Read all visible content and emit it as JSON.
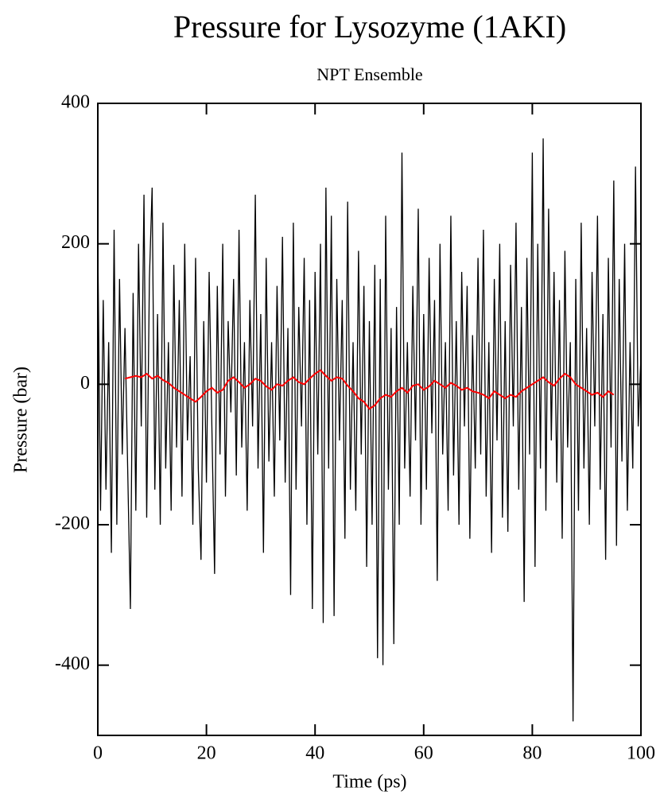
{
  "chart_data": {
    "type": "line",
    "title": "Pressure for Lysozyme (1AKI)",
    "subtitle": "NPT Ensemble",
    "x_label": "Time (ps)",
    "y_label": "Pressure (bar)",
    "xlim": [
      0,
      100
    ],
    "ylim": [
      -500,
      400
    ],
    "xticks": [
      0,
      20,
      40,
      60,
      80,
      100
    ],
    "yticks": [
      -400,
      -200,
      0,
      200,
      400
    ],
    "grid": false,
    "series": [
      {
        "color": "#000000",
        "x": [
          0,
          0.5,
          1,
          1.5,
          2,
          2.5,
          3,
          3.5,
          4,
          4.5,
          5,
          5.5,
          6,
          6.5,
          7,
          7.5,
          8,
          8.5,
          9,
          9.5,
          10,
          10.5,
          11,
          11.5,
          12,
          12.5,
          13,
          13.5,
          14,
          14.5,
          15,
          15.5,
          16,
          16.5,
          17,
          17.5,
          18,
          18.5,
          19,
          19.5,
          20,
          20.5,
          21,
          21.5,
          22,
          22.5,
          23,
          23.5,
          24,
          24.5,
          25,
          25.5,
          26,
          26.5,
          27,
          27.5,
          28,
          28.5,
          29,
          29.5,
          30,
          30.5,
          31,
          31.5,
          32,
          32.5,
          33,
          33.5,
          34,
          34.5,
          35,
          35.5,
          36,
          36.5,
          37,
          37.5,
          38,
          38.5,
          39,
          39.5,
          40,
          40.5,
          41,
          41.5,
          42,
          42.5,
          43,
          43.5,
          44,
          44.5,
          45,
          45.5,
          46,
          46.5,
          47,
          47.5,
          48,
          48.5,
          49,
          49.5,
          50,
          50.5,
          51,
          51.5,
          52,
          52.5,
          53,
          53.5,
          54,
          54.5,
          55,
          55.5,
          56,
          56.5,
          57,
          57.5,
          58,
          58.5,
          59,
          59.5,
          60,
          60.5,
          61,
          61.5,
          62,
          62.5,
          63,
          63.5,
          64,
          64.5,
          65,
          65.5,
          66,
          66.5,
          67,
          67.5,
          68,
          68.5,
          69,
          69.5,
          70,
          70.5,
          71,
          71.5,
          72,
          72.5,
          73,
          73.5,
          74,
          74.5,
          75,
          75.5,
          76,
          76.5,
          77,
          77.5,
          78,
          78.5,
          79,
          79.5,
          80,
          80.5,
          81,
          81.5,
          82,
          82.5,
          83,
          83.5,
          84,
          84.5,
          85,
          85.5,
          86,
          86.5,
          87,
          87.5,
          88,
          88.5,
          89,
          89.5,
          90,
          90.5,
          91,
          91.5,
          92,
          92.5,
          93,
          93.5,
          94,
          94.5,
          95,
          95.5,
          96,
          96.5,
          97,
          97.5,
          98,
          98.5,
          99,
          99.5,
          100
        ],
        "values": [
          200,
          -180,
          120,
          -150,
          60,
          -240,
          220,
          -200,
          150,
          -100,
          80,
          -120,
          -320,
          130,
          -180,
          200,
          -60,
          270,
          -190,
          150,
          280,
          -150,
          100,
          -200,
          230,
          -120,
          60,
          -180,
          170,
          -90,
          120,
          -160,
          200,
          -80,
          40,
          -200,
          180,
          -120,
          -250,
          90,
          -140,
          160,
          -60,
          -270,
          140,
          -100,
          200,
          -160,
          90,
          -40,
          150,
          -130,
          220,
          -90,
          60,
          -180,
          120,
          -60,
          270,
          -120,
          100,
          -240,
          180,
          -110,
          60,
          -160,
          140,
          -80,
          210,
          -140,
          80,
          -300,
          230,
          -150,
          110,
          -60,
          180,
          -200,
          120,
          -320,
          160,
          -100,
          200,
          -340,
          280,
          -120,
          240,
          -330,
          150,
          -80,
          120,
          -220,
          260,
          -150,
          60,
          -180,
          190,
          -100,
          140,
          -260,
          90,
          -200,
          170,
          -390,
          150,
          -400,
          240,
          -150,
          80,
          -370,
          110,
          -200,
          330,
          -120,
          60,
          -160,
          140,
          -80,
          250,
          -200,
          100,
          -150,
          180,
          -70,
          120,
          -280,
          200,
          -100,
          60,
          -180,
          240,
          -130,
          90,
          -200,
          160,
          -60,
          140,
          -220,
          70,
          -120,
          180,
          -100,
          220,
          -160,
          60,
          -240,
          150,
          -80,
          200,
          -190,
          90,
          -210,
          170,
          -60,
          230,
          -150,
          110,
          -310,
          180,
          -100,
          330,
          -260,
          200,
          -120,
          350,
          -180,
          250,
          -80,
          160,
          -140,
          120,
          -220,
          190,
          -90,
          60,
          -480,
          150,
          -180,
          230,
          -120,
          80,
          -200,
          160,
          -60,
          240,
          -150,
          100,
          -250,
          180,
          -90,
          290,
          -230,
          150,
          -110,
          200,
          -180,
          60,
          -120,
          310,
          -60,
          40
        ]
      },
      {
        "color": "#ff0000",
        "x": [
          5,
          6,
          7,
          8,
          9,
          10,
          11,
          12,
          13,
          14,
          15,
          16,
          17,
          18,
          19,
          20,
          21,
          22,
          23,
          24,
          25,
          26,
          27,
          28,
          29,
          30,
          31,
          32,
          33,
          34,
          35,
          36,
          37,
          38,
          39,
          40,
          41,
          42,
          43,
          44,
          45,
          46,
          47,
          48,
          49,
          50,
          51,
          52,
          53,
          54,
          55,
          56,
          57,
          58,
          59,
          60,
          61,
          62,
          63,
          64,
          65,
          66,
          67,
          68,
          69,
          70,
          71,
          72,
          73,
          74,
          75,
          76,
          77,
          78,
          79,
          80,
          81,
          82,
          83,
          84,
          85,
          86,
          87,
          88,
          89,
          90,
          91,
          92,
          93,
          94,
          95
        ],
        "values": [
          8,
          10,
          12,
          10,
          15,
          8,
          12,
          6,
          2,
          -5,
          -10,
          -15,
          -20,
          -25,
          -18,
          -10,
          -5,
          -12,
          -8,
          5,
          10,
          3,
          -5,
          0,
          8,
          5,
          -3,
          -8,
          0,
          -2,
          5,
          10,
          3,
          0,
          8,
          15,
          20,
          12,
          5,
          10,
          8,
          -2,
          -10,
          -20,
          -25,
          -35,
          -30,
          -20,
          -15,
          -18,
          -10,
          -5,
          -12,
          -2,
          0,
          -8,
          -3,
          5,
          0,
          -5,
          2,
          -2,
          -8,
          -5,
          -10,
          -12,
          -15,
          -20,
          -10,
          -15,
          -20,
          -15,
          -18,
          -10,
          -5,
          0,
          5,
          10,
          3,
          -2,
          8,
          15,
          10,
          0,
          -5,
          -10,
          -15,
          -12,
          -18,
          -10,
          -15
        ]
      }
    ]
  }
}
